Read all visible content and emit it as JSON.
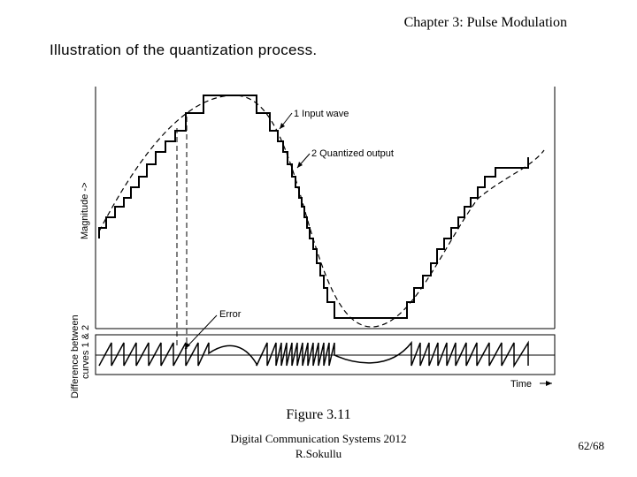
{
  "header": {
    "text": "Chapter 3: Pulse Modulation"
  },
  "subtitle": {
    "text": "Illustration of the quantization process."
  },
  "figure": {
    "y_axis_top": "Magnitude  ->",
    "y_axis_bottom_line1": "Difference between",
    "y_axis_bottom_line2": "curves 1 & 2",
    "label_input": "1 Input wave",
    "label_quantized": "2 Quantized output",
    "label_error": "Error",
    "x_axis": "Time",
    "caption": "Figure 3.11"
  },
  "footer": {
    "line1": "Digital Communication Systems 2012",
    "line2": "R.Sokullu"
  },
  "page": {
    "number": "62/68"
  }
}
